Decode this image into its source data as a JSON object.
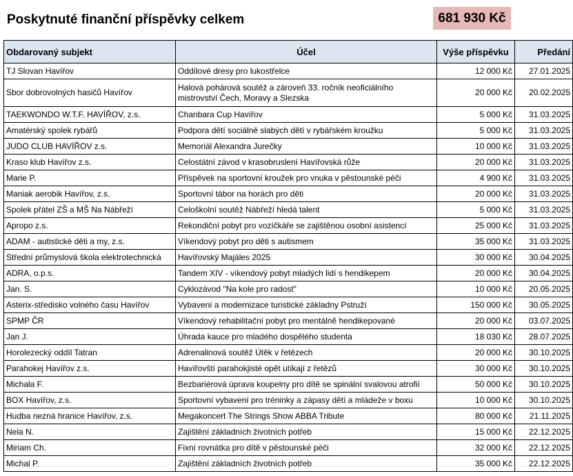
{
  "title": "Poskytnuté finanční příspěvky celkem",
  "total": "681 930 Kč",
  "colors": {
    "header_bg": "#dce6f1",
    "total_bg": "#e6b8b7"
  },
  "table": {
    "headers": [
      "Obdarovaný subjekt",
      "Účel",
      "Výše příspěvku",
      "Předání"
    ],
    "rows": [
      [
        "TJ Slovan Havířov",
        "Oddílové dresy pro lukostřelce",
        "12 000 Kč",
        "27.01.2025"
      ],
      [
        "Sbor dobrovolných hasičů Havířov",
        "Halová pohárová soutěž a zároveň 33. ročník neoficiálního mistrovství Čech, Moravy a Slezska",
        "20 000 Kč",
        "20.02.2025"
      ],
      [
        "TAEKWONDO W.T.F. HAVÍŘOV, z.s.",
        "Chanbara Cup Havířov",
        "5 000 Kč",
        "31.03.2025"
      ],
      [
        "Amatérský spolek rybářů",
        "Podpora dětí sociálně slabých dětí v rybářském kroužku",
        "5 000 Kč",
        "31.03.2025"
      ],
      [
        "JUDO CLUB HAVÍŘOV z.s.",
        "Memoriál Alexandra Jurečky",
        "10 000 Kč",
        "31.03.2025"
      ],
      [
        "Kraso klub Havířov z.s.",
        "Celostátní závod v krasobruslení Havířovská růže",
        "20 000 Kč",
        "31.03.2025"
      ],
      [
        "Marie P.",
        "Příspěvek na sportovní kroužek pro vnuka v pěstounské péči",
        "4 900 Kč",
        "31.03.2025"
      ],
      [
        "Maniak aerobik Havířov, z.s.",
        "Sportovní tábor na horách pro děti",
        "20 000 Kč",
        "31.03.2025"
      ],
      [
        "Spolek přátel ZŠ a MŠ Na Nábřeží",
        "Celoškolní soutěž Nábřeží hledá talent",
        "5 000 Kč",
        "31.03.2025"
      ],
      [
        "Apropo z.s.",
        "Rekondiční pobyt pro vozíčkáře se zajištěnou osobní asistencí",
        "25 000 Kč",
        "31.03.2025"
      ],
      [
        "ADAM - autistické děti a my, z.s.",
        "Víkendový pobyt pro děti s autismem",
        "35 000 Kč",
        "31.03.2025"
      ],
      [
        "Střední průmyslová škola elektrotechnická",
        "Havířovský Majáles 2025",
        "30 000 Kč",
        "30.04.2025"
      ],
      [
        "ADRA, o.p.s.",
        "Tandem XIV - víkendový pobyt mladých lidí s hendikepem",
        "20 000 Kč",
        "30.04.2025"
      ],
      [
        "Jan. S.",
        "Cyklozávod \"Na kole pro radost\"",
        "10 000 Kč",
        "20.05.2025"
      ],
      [
        "Asterix-středisko volného času Havířov",
        "Vybavení a modernizace turistické základny Pstruží",
        "150 000 Kč",
        "30.05.2025"
      ],
      [
        "SPMP ČR",
        "Víkendový rehabilitační pobyt pro mentálně hendikepované",
        "20 000 Kč",
        "03.07.2025"
      ],
      [
        "Jan J.",
        "Úhrada kauce pro mladého dospělého studenta",
        "18 030 Kč",
        "28.07.2025"
      ],
      [
        "Horolezecký oddíl Tatran",
        "Adrenalinová soutěž Útěk v řetězech",
        "20 000 Kč",
        "30.10.2025"
      ],
      [
        "Parahokej Havířov z.s.",
        "Havířovští parahokjisté opět utíkají z řetězů",
        "30 000 Kč",
        "30.10.2025"
      ],
      [
        "Michala F.",
        "Bezbariérová úprava koupelny pro dítě se spinální svalovou atrofií",
        "50 000 Kč",
        "30.10.2025"
      ],
      [
        "BOX Havířov, z.s.",
        "Sportovní vybavení pro tréninky a zápasy dětí a mládeže v boxu",
        "10 000 Kč",
        "30.10.2025"
      ],
      [
        "Hudba nezná hranice Havířov, z.s.",
        "Megakoncert The Strings Show ABBA Tribute",
        "80 000 Kč",
        "21.11.2025"
      ],
      [
        "Nela N.",
        "Zajištění základních životních potřeb",
        "15 000 Kč",
        "22.12.2025"
      ],
      [
        "Miriam Ch.",
        "Fixní rovnátka pro dítě v pěstounské péči",
        "32 000 Kč",
        "22.12.2025"
      ],
      [
        "Michal P.",
        "Zajištění základních životních potřeb",
        "35 000 Kč",
        "22.12.2025"
      ]
    ]
  }
}
